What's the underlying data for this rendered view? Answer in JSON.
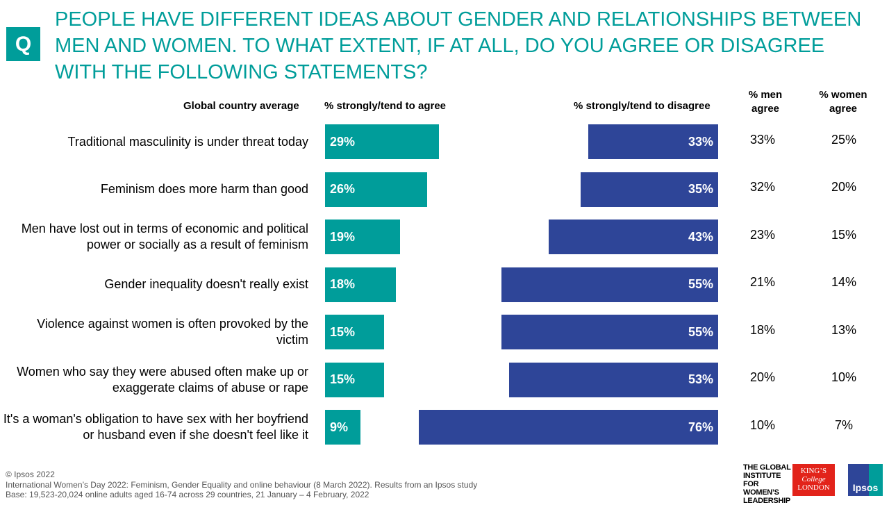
{
  "header": {
    "q_badge": "Q",
    "title": "People have different ideas about gender and relationships between men and women. To what extent, if at all, do you agree or disagree  with the following statements?"
  },
  "chart_data": {
    "type": "bar",
    "columns": {
      "label": "Global country average",
      "agree": "% strongly/tend to agree",
      "disagree": "% strongly/tend to disagree",
      "men": "% men agree",
      "women": "% women agree"
    },
    "colors": {
      "agree": "#009d9a",
      "disagree": "#2e4598"
    },
    "rows": [
      {
        "label": "Traditional masculinity is under threat today",
        "agree": 29,
        "disagree": 33,
        "men": 33,
        "women": 25
      },
      {
        "label": "Feminism does more harm than good",
        "agree": 26,
        "disagree": 35,
        "men": 32,
        "women": 20
      },
      {
        "label": "Men have lost out in terms of economic and political power or socially as a result of feminism",
        "agree": 19,
        "disagree": 43,
        "men": 23,
        "women": 15
      },
      {
        "label": "Gender inequality doesn't really exist",
        "agree": 18,
        "disagree": 55,
        "men": 21,
        "women": 14
      },
      {
        "label": "Violence against women is often provoked by the victim",
        "agree": 15,
        "disagree": 55,
        "men": 18,
        "women": 13
      },
      {
        "label": "Women who say they were abused often make up or exaggerate claims of abuse or rape",
        "agree": 15,
        "disagree": 53,
        "men": 20,
        "women": 10
      },
      {
        "label": "It's a woman's obligation to have sex with her boyfriend or husband even if she doesn't feel like it",
        "agree": 9,
        "disagree": 76,
        "men": 10,
        "women": 7
      }
    ]
  },
  "footer": {
    "copyright": "© Ipsos 2022",
    "source": "International Women’s Day 2022: Feminism, Gender Equality and online behaviour (8 March  2022). Results from an Ipsos study",
    "base": "Base: 19,523-20,024 online adults aged 16-74 across 29 countries, 21 January – 4 February, 2022"
  },
  "logos": {
    "gi": "THE GLOBAL INSTITUTE FOR WOMEN'S LEADERSHIP",
    "kcl": "KING'S College LONDON",
    "ipsos": "Ipsos"
  }
}
